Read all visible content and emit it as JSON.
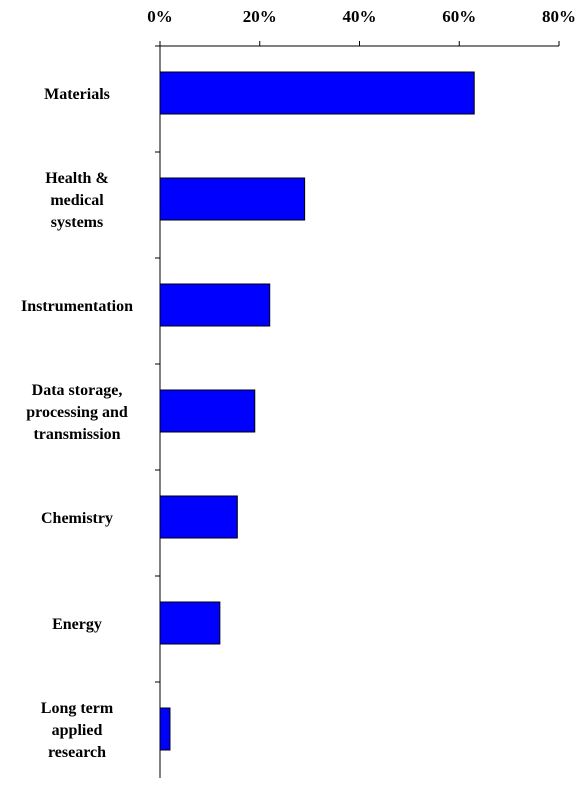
{
  "chart_data": {
    "type": "bar",
    "orientation": "horizontal",
    "title": "",
    "xlabel": "",
    "ylabel": "",
    "xlim": [
      0,
      80
    ],
    "x_ticks": [
      0,
      20,
      40,
      60,
      80
    ],
    "x_tick_labels": [
      "0%",
      "20%",
      "40%",
      "60%",
      "80%"
    ],
    "x_axis_position": "top",
    "grid": false,
    "legend": "none",
    "categories": [
      [
        "Materials"
      ],
      [
        "Health &",
        "medical",
        "systems"
      ],
      [
        "Instrumentation"
      ],
      [
        "Data storage,",
        "processing and",
        "transmission"
      ],
      [
        "Chemistry"
      ],
      [
        "Energy"
      ],
      [
        "Long term",
        "applied",
        "research"
      ]
    ],
    "values": [
      63,
      29,
      22,
      19,
      15.5,
      12,
      2
    ],
    "bar_color": "#0000FF",
    "bar_edge_color": "#000000"
  }
}
